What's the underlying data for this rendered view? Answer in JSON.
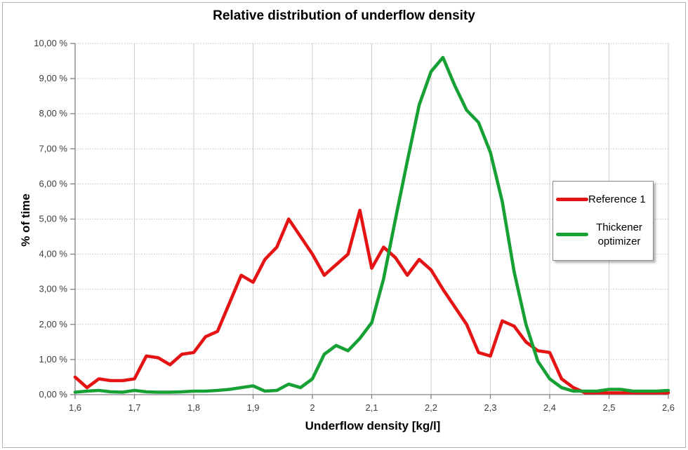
{
  "chart_data": {
    "type": "line",
    "title": "Relative distribution of underflow density",
    "xlabel": "Underflow density [kg/l]",
    "ylabel": "% of time",
    "xlim": [
      1.6,
      2.6
    ],
    "ylim": [
      0,
      10
    ],
    "grid": true,
    "legend_position": "right",
    "x_ticks": [
      1.6,
      1.7,
      1.8,
      1.9,
      2.0,
      2.1,
      2.2,
      2.3,
      2.4,
      2.5,
      2.6
    ],
    "x_tick_labels": [
      "1,6",
      "1,7",
      "1,8",
      "1,9",
      "2",
      "2,1",
      "2,2",
      "2,3",
      "2,4",
      "2,5",
      "2,6"
    ],
    "y_ticks": [
      0,
      1,
      2,
      3,
      4,
      5,
      6,
      7,
      8,
      9,
      10
    ],
    "y_tick_labels": [
      "0,00 %",
      "1,00 %",
      "2,00 %",
      "3,00 %",
      "4,00 %",
      "5,00 %",
      "6,00 %",
      "7,00 %",
      "8,00 %",
      "9,00 %",
      "10,00 %"
    ],
    "x": [
      1.6,
      1.62,
      1.64,
      1.66,
      1.68,
      1.7,
      1.72,
      1.74,
      1.76,
      1.78,
      1.8,
      1.82,
      1.84,
      1.86,
      1.88,
      1.9,
      1.92,
      1.94,
      1.96,
      1.98,
      2.0,
      2.02,
      2.04,
      2.06,
      2.08,
      2.1,
      2.12,
      2.14,
      2.16,
      2.18,
      2.2,
      2.22,
      2.24,
      2.26,
      2.28,
      2.3,
      2.32,
      2.34,
      2.36,
      2.38,
      2.4,
      2.42,
      2.44,
      2.46,
      2.48,
      2.5,
      2.52,
      2.54,
      2.56,
      2.58,
      2.6
    ],
    "series": [
      {
        "name": "Reference 1",
        "color": "#e41414",
        "values": [
          0.5,
          0.2,
          0.45,
          0.4,
          0.4,
          0.45,
          1.1,
          1.05,
          0.85,
          1.15,
          1.2,
          1.65,
          1.8,
          2.6,
          3.4,
          3.2,
          3.85,
          4.2,
          5.0,
          4.5,
          4.0,
          3.4,
          3.7,
          4.0,
          5.25,
          3.6,
          4.2,
          3.9,
          3.4,
          3.85,
          3.55,
          3.0,
          2.5,
          2.0,
          1.2,
          1.1,
          2.1,
          1.95,
          1.5,
          1.25,
          1.2,
          0.45,
          0.2,
          0.05,
          0.05,
          0.05,
          0.05,
          0.05,
          0.05,
          0.05,
          0.05
        ]
      },
      {
        "name": "Thickener optimizer",
        "color": "#17a135",
        "values": [
          0.07,
          0.1,
          0.12,
          0.08,
          0.07,
          0.12,
          0.08,
          0.07,
          0.07,
          0.08,
          0.1,
          0.1,
          0.12,
          0.15,
          0.2,
          0.25,
          0.1,
          0.12,
          0.3,
          0.2,
          0.45,
          1.15,
          1.4,
          1.25,
          1.6,
          2.05,
          3.3,
          5.0,
          6.65,
          8.25,
          9.2,
          9.6,
          8.8,
          8.1,
          7.75,
          6.9,
          5.5,
          3.5,
          2.0,
          0.95,
          0.45,
          0.2,
          0.1,
          0.1,
          0.1,
          0.15,
          0.15,
          0.1,
          0.1,
          0.1,
          0.12
        ]
      }
    ]
  }
}
